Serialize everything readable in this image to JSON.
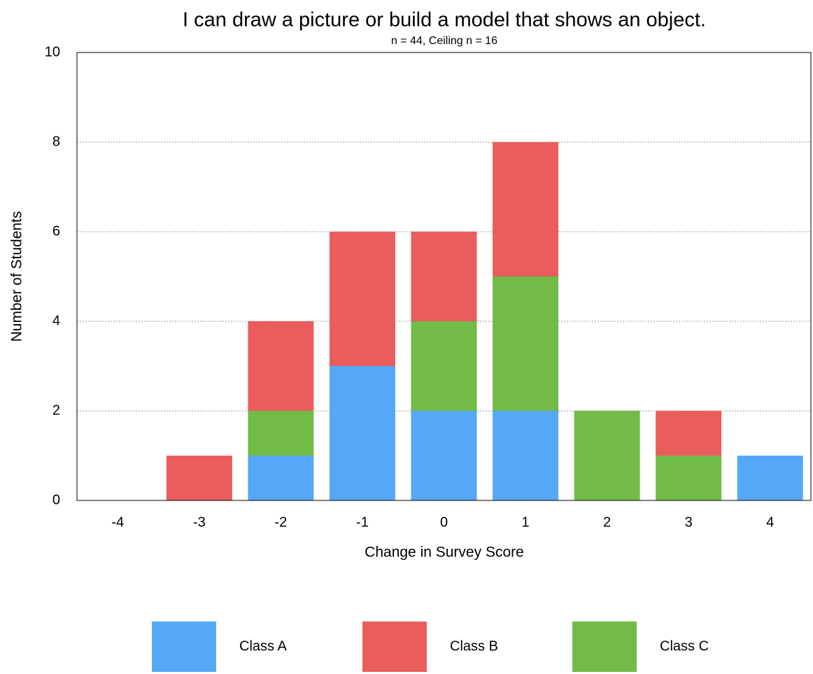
{
  "chart_data": {
    "type": "stacked_bar",
    "title": "I can draw a picture or build a model that shows an object.",
    "subtitle": "n = 44, Ceiling n = 16",
    "x_label": "Change in Survey Score",
    "y_label": "Number of Students",
    "categories": [
      "-4",
      "-3",
      "-2",
      "-1",
      "0",
      "1",
      "2",
      "3",
      "4"
    ],
    "series": [
      {
        "name": "Class A",
        "color": "#55a8f6",
        "values": [
          0,
          0,
          1,
          3,
          2,
          2,
          0,
          0,
          1
        ]
      },
      {
        "name": "Class B",
        "color": "#e95e5c",
        "values": [
          0,
          1,
          2,
          3,
          2,
          3,
          0,
          1,
          0
        ]
      },
      {
        "name": "Class C",
        "color": "#72bb47",
        "values": [
          0,
          0,
          1,
          0,
          2,
          3,
          2,
          1,
          0
        ]
      }
    ],
    "ylim": [
      0,
      10
    ],
    "yticks": [
      0,
      2,
      4,
      6,
      8,
      10
    ],
    "grid": true,
    "legend": "bottom"
  }
}
